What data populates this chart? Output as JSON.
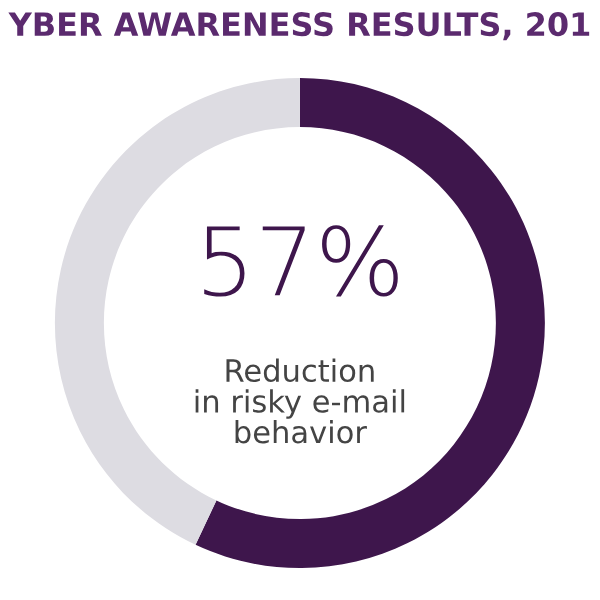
{
  "chart_data": {
    "type": "donut",
    "title": "YBER AWARENESS RESULTS, 201",
    "categories": [
      null,
      null
    ],
    "values": [
      57,
      43
    ],
    "colors": [
      "#3e164c",
      "#dddce2"
    ],
    "value_labels": [
      "57%",
      null
    ],
    "annotations": [
      "Reduction\nin risky e-mail\nbehavior"
    ]
  }
}
